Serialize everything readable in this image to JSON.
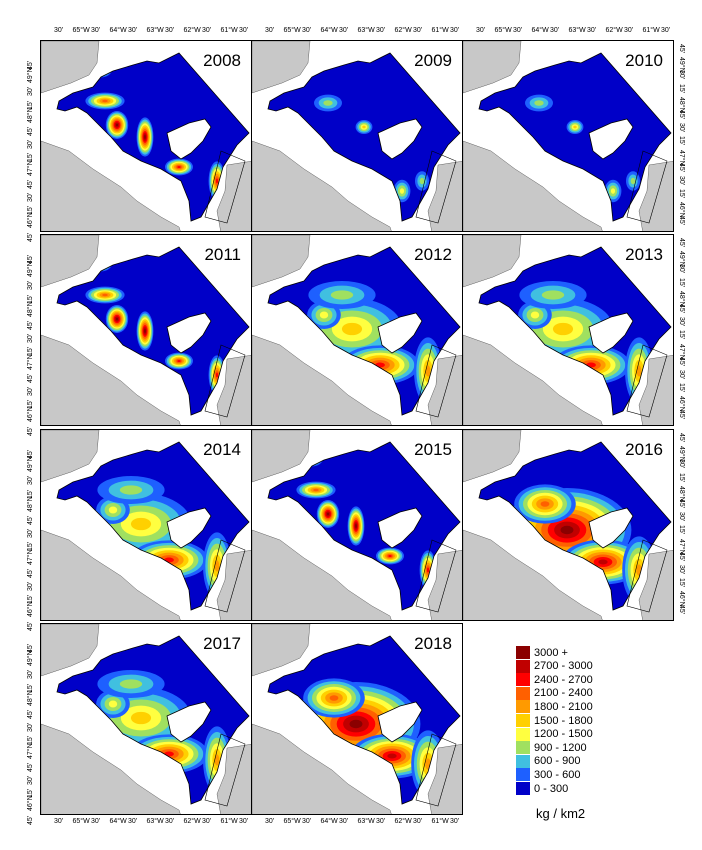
{
  "panels": [
    {
      "year": "2008",
      "level": 1
    },
    {
      "year": "2009",
      "level": 0
    },
    {
      "year": "2010",
      "level": 0
    },
    {
      "year": "2011",
      "level": 1
    },
    {
      "year": "2012",
      "level": 2
    },
    {
      "year": "2013",
      "level": 2
    },
    {
      "year": "2014",
      "level": 2
    },
    {
      "year": "2015",
      "level": 1
    },
    {
      "year": "2016",
      "level": 3
    },
    {
      "year": "2017",
      "level": 2
    },
    {
      "year": "2018",
      "level": 3
    }
  ],
  "axes": {
    "top_ticks": [
      "30'",
      "65°W",
      "30'",
      "64°W",
      "30'",
      "63°W",
      "30'",
      "62°W",
      "30'",
      "61°W",
      "30'"
    ],
    "bottom_ticks": [
      "30'",
      "65°W",
      "30'",
      "64°W",
      "30'",
      "63°W",
      "30'",
      "62°W",
      "30'",
      "61°W",
      "30'"
    ],
    "lat_ticks": [
      "45'",
      "49°N",
      "30'",
      "15'",
      "48°N",
      "45'",
      "30'",
      "15'",
      "47°N",
      "45'",
      "30'",
      "15'",
      "46°N",
      "45'"
    ]
  },
  "legend": {
    "unit": "kg / km2",
    "classes": [
      {
        "label": "3000 +",
        "color": "#8b0000"
      },
      {
        "label": "2700 - 3000",
        "color": "#c00000"
      },
      {
        "label": "2400 - 2700",
        "color": "#ff0000"
      },
      {
        "label": "2100 - 2400",
        "color": "#ff6000"
      },
      {
        "label": "1800 - 2100",
        "color": "#ff9a00"
      },
      {
        "label": "1500 - 1800",
        "color": "#ffd000"
      },
      {
        "label": "1200 - 1500",
        "color": "#ffff40"
      },
      {
        "label": "900 - 1200",
        "color": "#a0e060"
      },
      {
        "label": "600 - 900",
        "color": "#40c0e0"
      },
      {
        "label": "300 - 600",
        "color": "#1e60ff"
      },
      {
        "label": "0 - 300",
        "color": "#0000c8"
      }
    ]
  },
  "colors": {
    "land": "#c8c8c8",
    "water": "#ffffff",
    "coast": "#606060"
  }
}
